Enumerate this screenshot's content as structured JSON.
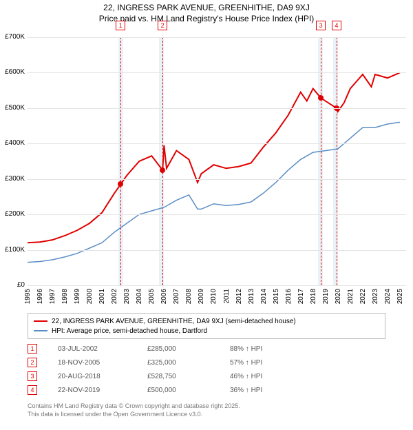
{
  "title": "22, INGRESS PARK AVENUE, GREENHITHE, DA9 9XJ",
  "subtitle": "Price paid vs. HM Land Registry's House Price Index (HPI)",
  "chart": {
    "type": "line",
    "background_color": "#ffffff",
    "grid_color": "#e5e5e5",
    "highlight_band_color": "#eaf2f8",
    "vline_color": "#e00000",
    "ylim": [
      0,
      700000
    ],
    "yticks": [
      0,
      100000,
      200000,
      300000,
      400000,
      500000,
      600000,
      700000
    ],
    "ytick_labels": [
      "£0",
      "£100K",
      "£200K",
      "£300K",
      "£400K",
      "£500K",
      "£600K",
      "£700K"
    ],
    "xlim": [
      1995,
      2025.5
    ],
    "xticks": [
      1995,
      1996,
      1997,
      1998,
      1999,
      2000,
      2001,
      2002,
      2003,
      2004,
      2005,
      2006,
      2007,
      2008,
      2009,
      2010,
      2011,
      2012,
      2013,
      2014,
      2015,
      2016,
      2017,
      2018,
      2019,
      2020,
      2021,
      2022,
      2023,
      2024,
      2025
    ],
    "highlight_bands": [
      [
        2002.3,
        2002.7
      ],
      [
        2005.6,
        2006.0
      ],
      [
        2018.4,
        2018.8
      ],
      [
        2019.6,
        2020.0
      ]
    ],
    "vlines": [
      2002.5,
      2005.88,
      2018.63,
      2019.89
    ],
    "series": [
      {
        "name": "property",
        "label": "22, INGRESS PARK AVENUE, GREENHITHE, DA9 9XJ (semi-detached house)",
        "color": "#e00000",
        "line_width": 2,
        "points": [
          [
            1995,
            120000
          ],
          [
            1996,
            122000
          ],
          [
            1997,
            128000
          ],
          [
            1998,
            140000
          ],
          [
            1999,
            155000
          ],
          [
            2000,
            175000
          ],
          [
            2001,
            205000
          ],
          [
            2002,
            260000
          ],
          [
            2002.5,
            285000
          ],
          [
            2003,
            310000
          ],
          [
            2004,
            350000
          ],
          [
            2005,
            365000
          ],
          [
            2005.88,
            325000
          ],
          [
            2006,
            395000
          ],
          [
            2006.2,
            330000
          ],
          [
            2007,
            380000
          ],
          [
            2008,
            355000
          ],
          [
            2008.7,
            290000
          ],
          [
            2009,
            315000
          ],
          [
            2010,
            340000
          ],
          [
            2011,
            330000
          ],
          [
            2012,
            335000
          ],
          [
            2013,
            345000
          ],
          [
            2014,
            390000
          ],
          [
            2015,
            430000
          ],
          [
            2016,
            480000
          ],
          [
            2017,
            545000
          ],
          [
            2017.5,
            520000
          ],
          [
            2018,
            555000
          ],
          [
            2018.63,
            528750
          ],
          [
            2019,
            520000
          ],
          [
            2019.89,
            500000
          ],
          [
            2020,
            490000
          ],
          [
            2020.5,
            515000
          ],
          [
            2021,
            555000
          ],
          [
            2022,
            595000
          ],
          [
            2022.7,
            560000
          ],
          [
            2023,
            595000
          ],
          [
            2024,
            585000
          ],
          [
            2025,
            600000
          ]
        ]
      },
      {
        "name": "hpi",
        "label": "HPI: Average price, semi-detached house, Dartford",
        "color": "#5b8ec4",
        "line_width": 1.5,
        "points": [
          [
            1995,
            65000
          ],
          [
            1996,
            67000
          ],
          [
            1997,
            72000
          ],
          [
            1998,
            80000
          ],
          [
            1999,
            90000
          ],
          [
            2000,
            105000
          ],
          [
            2001,
            120000
          ],
          [
            2002,
            150000
          ],
          [
            2003,
            175000
          ],
          [
            2004,
            200000
          ],
          [
            2005,
            210000
          ],
          [
            2006,
            220000
          ],
          [
            2007,
            240000
          ],
          [
            2008,
            255000
          ],
          [
            2008.7,
            215000
          ],
          [
            2009,
            215000
          ],
          [
            2010,
            230000
          ],
          [
            2011,
            225000
          ],
          [
            2012,
            228000
          ],
          [
            2013,
            235000
          ],
          [
            2014,
            260000
          ],
          [
            2015,
            290000
          ],
          [
            2016,
            325000
          ],
          [
            2017,
            355000
          ],
          [
            2018,
            375000
          ],
          [
            2019,
            380000
          ],
          [
            2020,
            385000
          ],
          [
            2021,
            415000
          ],
          [
            2022,
            445000
          ],
          [
            2023,
            445000
          ],
          [
            2024,
            455000
          ],
          [
            2025,
            460000
          ]
        ]
      }
    ],
    "sale_markers": [
      {
        "n": "1",
        "year": 2002.5,
        "price": 285000
      },
      {
        "n": "2",
        "year": 2005.88,
        "price": 325000
      },
      {
        "n": "3",
        "year": 2018.63,
        "price": 528750
      },
      {
        "n": "4",
        "year": 2019.89,
        "price": 500000
      }
    ]
  },
  "legend": {
    "border_color": "#bbbbbb",
    "items": [
      {
        "label": "22, INGRESS PARK AVENUE, GREENHITHE, DA9 9XJ (semi-detached house)",
        "color": "#e00000"
      },
      {
        "label": "HPI: Average price, semi-detached house, Dartford",
        "color": "#5b8ec4"
      }
    ]
  },
  "sales": [
    {
      "n": "1",
      "date": "03-JUL-2002",
      "price": "£285,000",
      "pct": "88% ↑ HPI"
    },
    {
      "n": "2",
      "date": "18-NOV-2005",
      "price": "£325,000",
      "pct": "57% ↑ HPI"
    },
    {
      "n": "3",
      "date": "20-AUG-2018",
      "price": "£528,750",
      "pct": "46% ↑ HPI"
    },
    {
      "n": "4",
      "date": "22-NOV-2019",
      "price": "£500,000",
      "pct": "36% ↑ HPI"
    }
  ],
  "footer_line1": "Contains HM Land Registry data © Crown copyright and database right 2025.",
  "footer_line2": "This data is licensed under the Open Government Licence v3.0."
}
